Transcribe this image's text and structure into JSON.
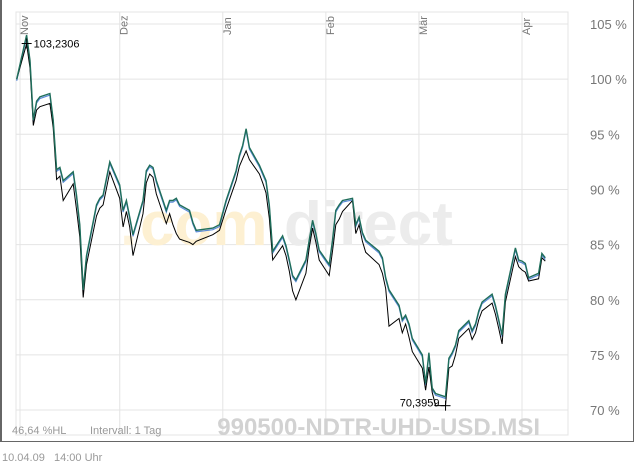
{
  "chart_data": {
    "type": "line",
    "title": "",
    "xlabel": "",
    "ylabel": "",
    "y_tick_labels": [
      "105 %",
      "100 %",
      "95 %",
      "90 %",
      "85 %",
      "80 %",
      "75 %",
      "70 %"
    ],
    "y_ticks": [
      105,
      100,
      95,
      90,
      85,
      80,
      75,
      70
    ],
    "ylim": [
      67.8,
      106
    ],
    "x_tick_labels": [
      "Nov",
      "Dez",
      "Jan",
      "Feb",
      "Mär",
      "Apr"
    ],
    "x_ticks": [
      "2008-11-01",
      "2008-12-01",
      "2009-01-01",
      "2009-02-01",
      "2009-03-01",
      "2009-04-01"
    ],
    "grid": true,
    "x": [
      "2008-10-31",
      "2008-11-03",
      "2008-11-04",
      "2008-11-05",
      "2008-11-06",
      "2008-11-07",
      "2008-11-10",
      "2008-11-11",
      "2008-11-12",
      "2008-11-13",
      "2008-11-14",
      "2008-11-17",
      "2008-11-18",
      "2008-11-19",
      "2008-11-20",
      "2008-11-21",
      "2008-11-24",
      "2008-11-25",
      "2008-11-26",
      "2008-11-28",
      "2008-12-01",
      "2008-12-02",
      "2008-12-03",
      "2008-12-04",
      "2008-12-05",
      "2008-12-08",
      "2008-12-09",
      "2008-12-10",
      "2008-12-11",
      "2008-12-12",
      "2008-12-15",
      "2008-12-16",
      "2008-12-17",
      "2008-12-18",
      "2008-12-19",
      "2008-12-22",
      "2008-12-23",
      "2008-12-24",
      "2008-12-29",
      "2008-12-31",
      "2009-01-02",
      "2009-01-05",
      "2009-01-06",
      "2009-01-07",
      "2009-01-08",
      "2009-01-09",
      "2009-01-12",
      "2009-01-13",
      "2009-01-14",
      "2009-01-15",
      "2009-01-16",
      "2009-01-19",
      "2009-01-20",
      "2009-01-21",
      "2009-01-22",
      "2009-01-23",
      "2009-01-26",
      "2009-01-27",
      "2009-01-28",
      "2009-01-29",
      "2009-01-30",
      "2009-02-02",
      "2009-02-03",
      "2009-02-04",
      "2009-02-05",
      "2009-02-06",
      "2009-02-09",
      "2009-02-10",
      "2009-02-11",
      "2009-02-12",
      "2009-02-13",
      "2009-02-17",
      "2009-02-18",
      "2009-02-19",
      "2009-02-20",
      "2009-02-23",
      "2009-02-24",
      "2009-02-25",
      "2009-02-26",
      "2009-02-27",
      "2009-03-02",
      "2009-03-03",
      "2009-03-04",
      "2009-03-05",
      "2009-03-06",
      "2009-03-09",
      "2009-03-10",
      "2009-03-11",
      "2009-03-12",
      "2009-03-13",
      "2009-03-16",
      "2009-03-17",
      "2009-03-18",
      "2009-03-19",
      "2009-03-20",
      "2009-03-23",
      "2009-03-24",
      "2009-03-25",
      "2009-03-26",
      "2009-03-27",
      "2009-03-30",
      "2009-03-31",
      "2009-04-01",
      "2009-04-02",
      "2009-04-03",
      "2009-04-06",
      "2009-04-07",
      "2009-04-08"
    ],
    "series": [
      {
        "color": "#1f6e5a",
        "values": [
          100.0,
          104.0,
          101.7,
          96.3,
          98.0,
          98.4,
          98.7,
          96.3,
          91.8,
          92.0,
          90.8,
          91.6,
          89.5,
          86.8,
          80.9,
          84.0,
          88.6,
          89.2,
          89.5,
          92.5,
          90.4,
          88.1,
          89.0,
          87.5,
          85.9,
          89.0,
          91.7,
          92.2,
          92.0,
          90.8,
          88.1,
          89.0,
          89.0,
          89.2,
          88.6,
          88.1,
          87.0,
          86.3,
          86.5,
          86.8,
          89.0,
          91.7,
          93.1,
          94.0,
          95.5,
          93.8,
          92.2,
          91.5,
          90.8,
          88.6,
          84.4,
          85.8,
          84.9,
          83.6,
          82.2,
          81.8,
          83.6,
          85.4,
          87.2,
          86.0,
          84.5,
          83.2,
          85.4,
          88.1,
          88.6,
          89.0,
          89.2,
          86.8,
          87.5,
          86.1,
          85.4,
          84.4,
          83.8,
          82.0,
          80.9,
          79.5,
          78.2,
          78.6,
          77.8,
          76.5,
          75.0,
          72.4,
          75.2,
          72.0,
          71.5,
          71.2,
          74.7,
          75.2,
          75.9,
          77.2,
          78.1,
          77.2,
          77.8,
          79.0,
          79.8,
          80.5,
          79.5,
          78.2,
          76.8,
          80.5,
          84.7,
          83.6,
          83.5,
          83.3,
          82.0,
          82.4,
          84.2,
          83.8
        ]
      },
      {
        "color": "#000000",
        "values": [
          100.0,
          103.2,
          101.0,
          95.8,
          97.2,
          97.5,
          97.8,
          95.6,
          90.9,
          91.2,
          89.0,
          90.5,
          88.2,
          85.7,
          80.2,
          83.2,
          87.6,
          88.3,
          88.6,
          91.6,
          89.2,
          86.6,
          88.0,
          86.6,
          84.0,
          87.8,
          90.6,
          91.4,
          91.1,
          89.6,
          86.9,
          87.8,
          86.8,
          86.0,
          85.5,
          85.2,
          85.0,
          85.3,
          85.9,
          86.3,
          88.2,
          90.8,
          92.1,
          92.8,
          93.5,
          92.7,
          91.4,
          90.6,
          89.7,
          87.4,
          83.6,
          84.9,
          84.0,
          82.6,
          80.8,
          80.0,
          82.4,
          84.7,
          86.5,
          85.2,
          83.6,
          82.2,
          84.4,
          86.8,
          87.3,
          88.0,
          89.0,
          86.0,
          86.8,
          85.3,
          84.3,
          83.2,
          82.4,
          81.0,
          77.6,
          78.3,
          77.0,
          77.8,
          76.6,
          75.3,
          73.8,
          71.8,
          73.9,
          71.6,
          70.4,
          70.4,
          73.8,
          74.0,
          75.0,
          76.5,
          77.4,
          76.4,
          77.0,
          78.2,
          79.0,
          79.7,
          78.7,
          77.4,
          76.0,
          79.8,
          83.9,
          83.0,
          82.7,
          82.5,
          81.7,
          81.9,
          83.8,
          83.5
        ]
      }
    ],
    "annotations": [
      {
        "label": "103,2306",
        "x": "2008-11-03",
        "y": 103.2306
      },
      {
        "label": "70,3959",
        "x": "2009-03-09",
        "y": 70.3959
      }
    ]
  },
  "watermark": {
    "logo_dot": ".",
    "logo_com": "com",
    "logo_direct": "direct",
    "symbol": "990500-NDTR-UHD-USD.MSI"
  },
  "footer": {
    "range": "46,64 %HL",
    "interval": "Intervall: 1 Tag",
    "timestamp": "10.04.09   14:00 Uhr"
  }
}
